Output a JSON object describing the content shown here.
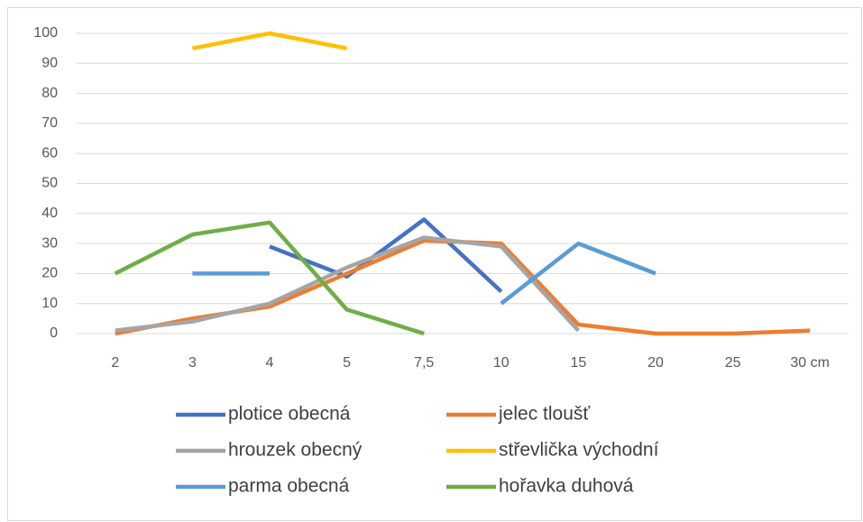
{
  "chart_data": {
    "type": "line",
    "categories": [
      "2",
      "3",
      "4",
      "5",
      "7,5",
      "10",
      "15",
      "20",
      "25",
      "30 cm"
    ],
    "series": [
      {
        "name": "plotice obecná",
        "color": "#4472c4",
        "values": [
          null,
          null,
          29,
          19,
          38,
          14,
          null,
          null,
          null,
          null
        ]
      },
      {
        "name": "jelec tloušť",
        "color": "#ed7d31",
        "values": [
          0,
          5,
          9,
          20,
          31,
          30,
          3,
          0,
          0,
          1
        ]
      },
      {
        "name": "hrouzek obecný",
        "color": "#a5a5a5",
        "values": [
          1,
          4,
          10,
          22,
          32,
          29,
          1,
          null,
          null,
          null
        ]
      },
      {
        "name": "střevlička východní",
        "color": "#ffc000",
        "values": [
          null,
          95,
          100,
          95,
          null,
          null,
          null,
          null,
          null,
          null
        ]
      },
      {
        "name": "parma obecná",
        "color": "#5b9bd5",
        "values": [
          null,
          20,
          20,
          null,
          null,
          10,
          30,
          20,
          null,
          null
        ]
      },
      {
        "name": "hořavka duhová",
        "color": "#70ad47",
        "values": [
          20,
          33,
          37,
          8,
          0,
          null,
          null,
          null,
          null,
          null
        ]
      }
    ],
    "ylim": [
      0,
      100
    ],
    "yticks": [
      0,
      10,
      20,
      30,
      40,
      50,
      60,
      70,
      80,
      90,
      100
    ],
    "grid": true,
    "legend": "bottom"
  }
}
